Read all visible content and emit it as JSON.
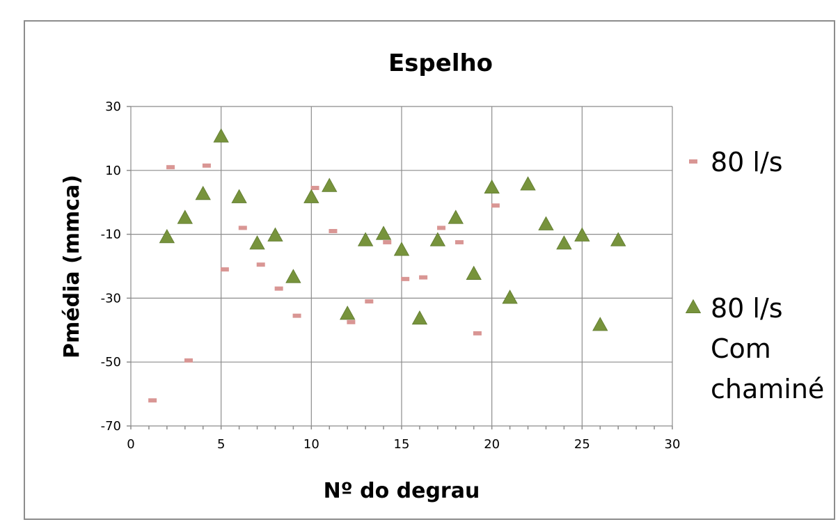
{
  "chart_data": {
    "type": "scatter",
    "title": "Espelho",
    "xlabel": "Nº do degrau",
    "ylabel": "Pmédia (mmca)",
    "xlim": [
      0,
      30
    ],
    "ylim": [
      -70,
      30
    ],
    "xticks": [
      0,
      5,
      10,
      15,
      20,
      25,
      30
    ],
    "yticks": [
      -70,
      -50,
      -30,
      -10,
      10,
      30
    ],
    "grid": true,
    "legend_position": "right",
    "series": [
      {
        "name": "80 l/s",
        "marker": "dash",
        "color": "#d99694",
        "points": [
          [
            1.2,
            -62
          ],
          [
            2.2,
            11
          ],
          [
            3.2,
            -49.5
          ],
          [
            4.2,
            11.5
          ],
          [
            5.2,
            -21
          ],
          [
            6.2,
            -8
          ],
          [
            7.2,
            -19.5
          ],
          [
            8.2,
            -27
          ],
          [
            9.2,
            -35.5
          ],
          [
            10.2,
            4.5
          ],
          [
            11.2,
            -9
          ],
          [
            12.2,
            -37.5
          ],
          [
            13.2,
            -31
          ],
          [
            14.2,
            -12.5
          ],
          [
            15.2,
            -24
          ],
          [
            16.2,
            -23.5
          ],
          [
            17.2,
            -8
          ],
          [
            18.2,
            -12.5
          ],
          [
            19.2,
            -41
          ],
          [
            20.2,
            -1
          ]
        ]
      },
      {
        "name": "80 l/s Com chaminé",
        "legend_lines": [
          "80 l/s",
          "Com",
          "chaminé"
        ],
        "marker": "triangle",
        "color": "#77933c",
        "points": [
          [
            2,
            -11
          ],
          [
            3,
            -5
          ],
          [
            4,
            2.5
          ],
          [
            5,
            20.5
          ],
          [
            6,
            1.5
          ],
          [
            7,
            -13
          ],
          [
            8,
            -10.5
          ],
          [
            9,
            -23.5
          ],
          [
            10,
            1.5
          ],
          [
            11,
            5
          ],
          [
            12,
            -35
          ],
          [
            13,
            -12
          ],
          [
            14,
            -10
          ],
          [
            15,
            -15
          ],
          [
            16,
            -36.5
          ],
          [
            17,
            -12
          ],
          [
            18,
            -5
          ],
          [
            19,
            -22.5
          ],
          [
            20,
            4.5
          ],
          [
            21,
            -30
          ],
          [
            22,
            5.5
          ],
          [
            23,
            -7
          ],
          [
            24,
            -13
          ],
          [
            25,
            -10.5
          ],
          [
            26,
            -38.5
          ],
          [
            27,
            -12
          ]
        ]
      }
    ]
  }
}
